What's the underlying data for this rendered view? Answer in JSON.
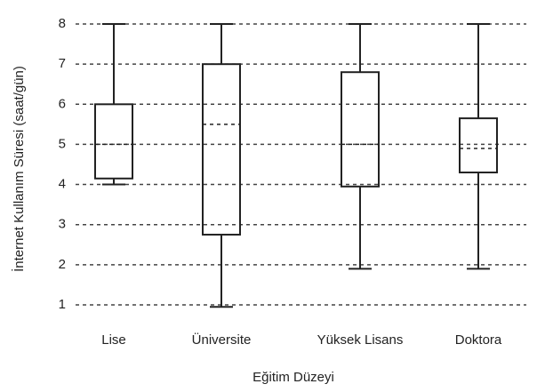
{
  "chart_data": {
    "type": "box",
    "y_label": "İnternet Kullanım Süresi (saat/gün)",
    "x_label": "Eğitim Düzeyi",
    "categories": [
      "Lise",
      "Üniversite",
      "Yüksek Lisans",
      "Doktora"
    ],
    "boxes": [
      {
        "min": 4,
        "q1": 4.15,
        "median": 5,
        "q3": 6,
        "max": 8
      },
      {
        "min": 0.95,
        "q1": 2.75,
        "median": 5.5,
        "q3": 7,
        "max": 8
      },
      {
        "min": 1.9,
        "q1": 3.95,
        "median": 5,
        "q3": 6.8,
        "max": 8
      },
      {
        "min": 1.9,
        "q1": 4.3,
        "median": 4.9,
        "q3": 5.65,
        "max": 8
      }
    ],
    "color": "#222222",
    "ylim": [
      0.6,
      8.3
    ],
    "yticks": [
      1,
      2,
      3,
      4,
      5,
      6,
      7,
      8
    ],
    "grid": true
  }
}
